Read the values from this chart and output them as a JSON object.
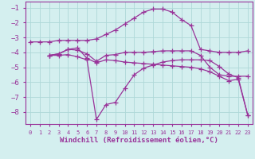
{
  "bg_color": "#d4efef",
  "grid_color": "#aed8d8",
  "line_color": "#993399",
  "marker": "+",
  "markersize": 4,
  "linewidth": 0.9,
  "xlabel": "Windchill (Refroidissement éolien,°C)",
  "xlabel_fontsize": 6.5,
  "xlabel_color": "#993399",
  "ylabel_ticks": [
    -8,
    -7,
    -6,
    -5,
    -4,
    -3,
    -2,
    -1
  ],
  "xlim": [
    -0.5,
    23.5
  ],
  "ylim": [
    -8.8,
    -0.6
  ],
  "xtick_labels": [
    "0",
    "1",
    "2",
    "3",
    "4",
    "5",
    "6",
    "7",
    "8",
    "9",
    "10",
    "11",
    "12",
    "13",
    "14",
    "15",
    "16",
    "17",
    "18",
    "19",
    "20",
    "21",
    "22",
    "23"
  ],
  "series": [
    {
      "x": [
        0,
        1,
        2,
        3,
        4,
        5,
        6,
        7,
        8,
        9,
        10,
        11,
        12,
        13,
        14,
        15,
        16,
        17,
        18,
        19,
        20,
        21,
        22,
        23
      ],
      "y": [
        -3.3,
        -3.3,
        -3.3,
        -3.2,
        -3.2,
        -3.2,
        -3.2,
        -3.1,
        -2.8,
        -2.5,
        -2.1,
        -1.7,
        -1.3,
        -1.1,
        -1.1,
        -1.3,
        -1.8,
        -2.2,
        -3.8,
        -3.9,
        -4.0,
        -4.0,
        -4.0,
        -3.9
      ]
    },
    {
      "x": [
        2,
        3,
        4,
        5,
        6,
        7,
        8,
        9,
        10,
        11,
        12,
        13,
        14,
        15,
        16,
        17,
        18,
        19,
        20,
        21,
        22,
        23
      ],
      "y": [
        -4.2,
        -4.1,
        -3.8,
        -3.85,
        -4.1,
        -4.6,
        -4.2,
        -4.15,
        -4.0,
        -4.0,
        -4.0,
        -3.95,
        -3.9,
        -3.9,
        -3.9,
        -3.9,
        -4.2,
        -5.0,
        -5.5,
        -5.6,
        -5.6,
        -5.6
      ]
    },
    {
      "x": [
        2,
        3,
        4,
        5,
        6,
        7,
        8,
        9,
        10,
        11,
        12,
        13,
        14,
        15,
        16,
        17,
        18,
        19,
        20,
        21,
        22,
        23
      ],
      "y": [
        -4.2,
        -4.1,
        -3.8,
        -3.7,
        -4.4,
        -4.7,
        -4.5,
        -4.55,
        -4.65,
        -4.7,
        -4.75,
        -4.8,
        -4.85,
        -4.9,
        -4.95,
        -5.0,
        -5.1,
        -5.3,
        -5.6,
        -5.9,
        -5.8,
        -8.2
      ]
    },
    {
      "x": [
        2,
        3,
        4,
        5,
        6,
        7,
        8,
        9,
        10,
        11,
        12,
        13,
        14,
        15,
        16,
        17,
        18,
        19,
        20,
        21,
        22,
        23
      ],
      "y": [
        -4.2,
        -4.2,
        -4.15,
        -4.3,
        -4.5,
        -8.5,
        -7.5,
        -7.35,
        -6.4,
        -5.5,
        -5.05,
        -4.85,
        -4.65,
        -4.55,
        -4.5,
        -4.5,
        -4.5,
        -4.55,
        -4.95,
        -5.45,
        -5.7,
        -8.2
      ]
    }
  ]
}
